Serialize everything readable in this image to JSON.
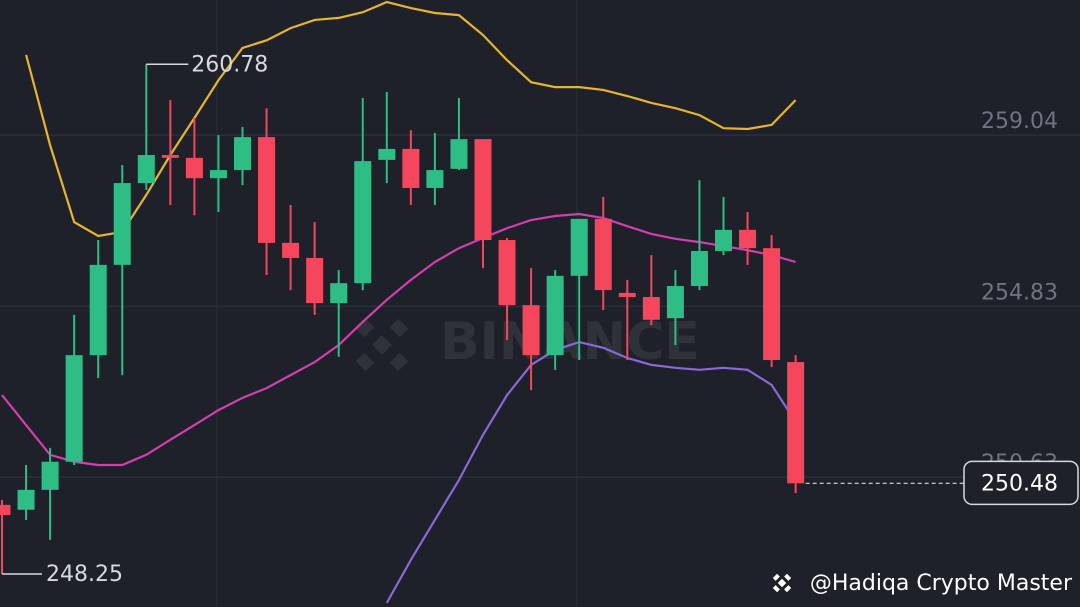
{
  "chart_data": {
    "type": "candlestick",
    "ylim": [
      247.44,
      262.36
    ],
    "yticks": [
      250.63,
      254.83,
      259.04
    ],
    "grid": true,
    "up_color": "#2ebd85",
    "down_color": "#f6465d",
    "open": [
      249.95,
      249.83,
      250.32,
      251.01,
      253.63,
      255.85,
      257.86,
      258.55,
      258.48,
      257.98,
      258.18,
      258.99,
      256.39,
      256.02,
      254.91,
      255.4,
      258.43,
      258.7,
      257.74,
      258.21,
      258.94,
      256.46,
      254.86,
      253.63,
      255.58,
      256.98,
      255.16,
      255.06,
      254.54,
      255.33,
      256.19,
      256.71,
      256.26,
      253.46
    ],
    "high": [
      250.07,
      250.93,
      251.35,
      254.62,
      256.46,
      258.3,
      260.78,
      259.9,
      259.46,
      259.04,
      259.24,
      259.7,
      257.32,
      256.9,
      255.72,
      259.95,
      260.1,
      259.16,
      259.09,
      259.95,
      258.94,
      256.51,
      255.77,
      255.72,
      256.98,
      257.52,
      255.48,
      256.09,
      255.72,
      257.93,
      257.52,
      257.15,
      256.58,
      253.63
    ],
    "low": [
      248.25,
      249.58,
      249.09,
      250.93,
      253.07,
      253.14,
      257.69,
      257.32,
      257.07,
      257.15,
      257.81,
      255.6,
      255.23,
      254.62,
      253.59,
      255.23,
      257.86,
      257.32,
      257.32,
      258.18,
      255.77,
      254.0,
      252.77,
      253.27,
      253.51,
      254.74,
      253.51,
      254.37,
      253.88,
      255.23,
      256.09,
      255.85,
      253.34,
      250.24
    ],
    "close": [
      249.7,
      250.32,
      251.01,
      253.63,
      255.85,
      257.86,
      258.55,
      258.48,
      257.98,
      258.18,
      258.99,
      256.39,
      256.02,
      254.91,
      255.4,
      258.4,
      258.7,
      257.74,
      258.18,
      258.94,
      256.46,
      254.86,
      253.63,
      255.58,
      256.98,
      255.23,
      255.06,
      254.5,
      255.33,
      256.19,
      256.71,
      256.26,
      253.51,
      250.48
    ],
    "series": [
      {
        "color": "#e6b52c",
        "values": [
          null,
          261.01,
          258.79,
          256.9,
          256.56,
          256.66,
          257.57,
          258.55,
          259.46,
          260.39,
          261.18,
          261.37,
          261.67,
          261.87,
          261.92,
          262.06,
          262.31,
          262.16,
          262.04,
          261.99,
          261.5,
          260.88,
          260.34,
          260.22,
          260.22,
          260.15,
          260.0,
          259.83,
          259.7,
          259.53,
          259.21,
          259.19,
          259.29,
          259.9
        ]
      },
      {
        "color": "#d23fae",
        "values": [
          252.65,
          251.91,
          251.18,
          251.01,
          250.93,
          250.93,
          251.18,
          251.55,
          251.91,
          252.28,
          252.58,
          252.82,
          253.14,
          253.46,
          253.88,
          254.45,
          254.99,
          255.48,
          255.92,
          256.26,
          256.51,
          256.75,
          256.95,
          257.05,
          257.1,
          257.0,
          256.8,
          256.61,
          256.49,
          256.41,
          256.31,
          256.21,
          256.09,
          255.92
        ]
      },
      {
        "color": "#8b68d6",
        "values": [
          null,
          null,
          null,
          null,
          null,
          null,
          null,
          null,
          null,
          null,
          null,
          null,
          null,
          null,
          null,
          null,
          247.54,
          248.6,
          249.58,
          250.56,
          251.67,
          252.65,
          253.39,
          253.76,
          253.95,
          253.81,
          253.56,
          253.39,
          253.32,
          253.27,
          253.32,
          253.27,
          252.9,
          251.99
        ]
      }
    ],
    "watermark": "BINANCE",
    "credit": "@Hadiqa Crypto Master"
  }
}
